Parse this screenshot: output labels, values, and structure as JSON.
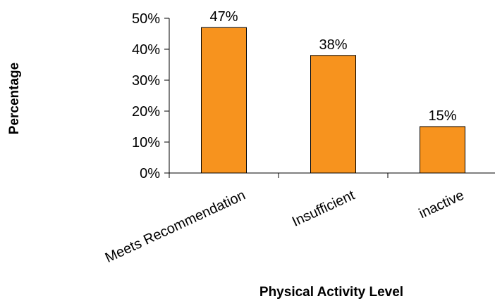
{
  "chart_data": {
    "type": "bar",
    "title": "",
    "xlabel": "Physical Activity Level",
    "ylabel": "Percentage",
    "categories": [
      "Meets Recommendation",
      "Insufficient",
      "inactive"
    ],
    "values": [
      47,
      38,
      15
    ],
    "value_labels": [
      "47%",
      "38%",
      "15%"
    ],
    "y_ticks": [
      0,
      10,
      20,
      30,
      40,
      50
    ],
    "y_tick_labels": [
      "0%",
      "10%",
      "20%",
      "30%",
      "40%",
      "50%"
    ],
    "ylim": [
      0,
      50
    ],
    "grid": false,
    "legend": "none",
    "bar_color": "#F7931E",
    "bar_edge_color": "#000000"
  }
}
